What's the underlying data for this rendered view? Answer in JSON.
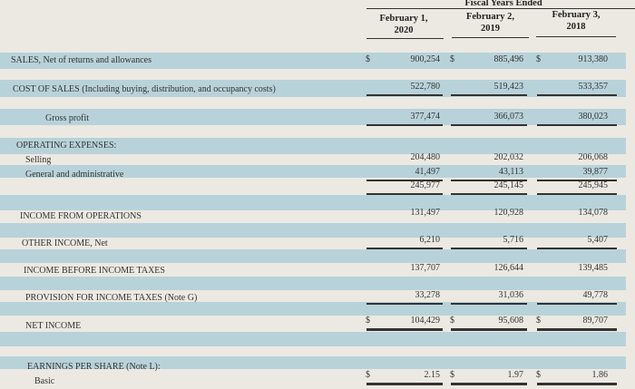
{
  "header": {
    "group": "Fiscal Years Ended",
    "cols": [
      "February 1,\n2020",
      "February 2,\n2019",
      "February 3,\n2018"
    ]
  },
  "rows": [
    {
      "label": "SALES, Net of returns and allowances",
      "values": [
        "900,254",
        "885,496",
        "913,380"
      ],
      "dollar": true
    },
    {
      "label": "COST OF SALES (Including buying, distribution, and occupancy costs)",
      "values": [
        "522,780",
        "519,423",
        "533,357"
      ]
    },
    {
      "label": "Gross profit",
      "values": [
        "377,474",
        "366,073",
        "380,023"
      ]
    },
    {
      "label": "OPERATING EXPENSES:"
    },
    {
      "label": "Selling",
      "values": [
        "204,480",
        "202,032",
        "206,068"
      ]
    },
    {
      "label": "General and administrative",
      "values": [
        "41,497",
        "43,113",
        "39,877"
      ]
    },
    {
      "label": "",
      "values": [
        "245,977",
        "245,145",
        "245,945"
      ]
    },
    {
      "label": "INCOME FROM OPERATIONS",
      "values": [
        "131,497",
        "120,928",
        "134,078"
      ]
    },
    {
      "label": "OTHER INCOME, Net",
      "values": [
        "6,210",
        "5,716",
        "5,407"
      ]
    },
    {
      "label": "INCOME BEFORE INCOME TAXES",
      "values": [
        "137,707",
        "126,644",
        "139,485"
      ]
    },
    {
      "label": "PROVISION FOR INCOME TAXES (Note G)",
      "values": [
        "33,278",
        "31,036",
        "49,778"
      ]
    },
    {
      "label": "NET INCOME",
      "values": [
        "104,429",
        "95,608",
        "89,707"
      ],
      "dollar": true
    },
    {
      "label": "EARNINGS PER SHARE (Note L):"
    },
    {
      "label": "Basic",
      "values": [
        "2.15",
        "1.97",
        "1.86"
      ],
      "dollar": true
    }
  ],
  "currency_symbol": "$"
}
